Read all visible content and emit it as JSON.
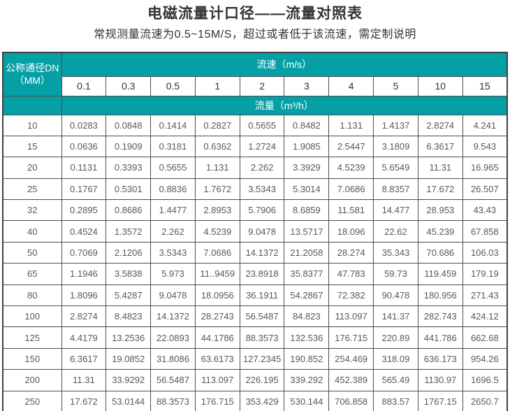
{
  "page": {
    "title": "电磁流量计口径——流量对照表",
    "subtitle": "常规测量流速为0.5~15M/S，超过或者低于该流速，需定制说明"
  },
  "colors": {
    "header_teal": "#05A0A6",
    "border_dark": "#4C4C4C",
    "data_text": "#58585A",
    "title_text": "#333333"
  },
  "table": {
    "corner_header_line1": "公称通径DN",
    "corner_header_line2": "（MM）",
    "velocity_header": "流速（m/s）",
    "flow_header": "流量（m³/h）",
    "velocity_values": [
      "0.1",
      "0.3",
      "0.5",
      "1",
      "2",
      "3",
      "4",
      "5",
      "10",
      "15"
    ],
    "rows": [
      {
        "dn": "10",
        "values": [
          "0.0283",
          "0.0848",
          "0.1414",
          "0.2827",
          "0.5655",
          "0.8482",
          "1.131",
          "1.4137",
          "2.8274",
          "4.241"
        ]
      },
      {
        "dn": "15",
        "values": [
          "0.0636",
          "0.1909",
          "0.3181",
          "0.6362",
          "1.2724",
          "1.9085",
          "2.5447",
          "3.1809",
          "6.3617",
          "9.543"
        ]
      },
      {
        "dn": "20",
        "values": [
          "0.1131",
          "0.3393",
          "0.5655",
          "1.131",
          "2.262",
          "3.3929",
          "4.5239",
          "5.6549",
          "11.31",
          "16.965"
        ]
      },
      {
        "dn": "25",
        "values": [
          "0.1767",
          "0.5301",
          "0.8836",
          "1.7672",
          "3.5343",
          "5.3014",
          "7.0686",
          "8.8357",
          "17.672",
          "26.507"
        ]
      },
      {
        "dn": "32",
        "values": [
          "0.2895",
          "0.8686",
          "1.4477",
          "2.8953",
          "5.7906",
          "8.6859",
          "11.581",
          "14.477",
          "28.953",
          "43.43"
        ]
      },
      {
        "dn": "40",
        "values": [
          "0.4524",
          "1.3572",
          "2.262",
          "4.5239",
          "9.0478",
          "13.5717",
          "18.096",
          "22.62",
          "45.239",
          "67.858"
        ]
      },
      {
        "dn": "50",
        "values": [
          "0.7069",
          "2.1206",
          "3.5343",
          "7.0686",
          "14.1372",
          "21.2058",
          "28.274",
          "35.343",
          "70.686",
          "106.03"
        ]
      },
      {
        "dn": "65",
        "values": [
          "1.1946",
          "3.5838",
          "5.973",
          "11..9459",
          "23.8918",
          "35.8377",
          "47.783",
          "59.73",
          "119.459",
          "179.19"
        ]
      },
      {
        "dn": "80",
        "values": [
          "1.8096",
          "5.4287",
          "9.0478",
          "18.0956",
          "36.1911",
          "54.2867",
          "72.382",
          "90.478",
          "180.956",
          "271.43"
        ]
      },
      {
        "dn": "100",
        "values": [
          "2.8274",
          "8.4823",
          "14.1372",
          "28.2743",
          "56.5487",
          "84.823",
          "113.097",
          "141.37",
          "282.743",
          "424.12"
        ]
      },
      {
        "dn": "125",
        "values": [
          "4.4179",
          "13.2536",
          "22.0893",
          "44.1786",
          "88.3573",
          "132.536",
          "176.715",
          "220.89",
          "441.786",
          "662.68"
        ]
      },
      {
        "dn": "150",
        "values": [
          "6.3617",
          "19.0852",
          "31.8086",
          "63.6173",
          "127.2345",
          "190.852",
          "254.469",
          "318.09",
          "636.173",
          "954.26"
        ]
      },
      {
        "dn": "200",
        "values": [
          "11.31",
          "33.9292",
          "56.5487",
          "113.097",
          "226.195",
          "339.292",
          "452.389",
          "565.49",
          "1130.97",
          "1696.5"
        ]
      },
      {
        "dn": "250",
        "values": [
          "17.672",
          "53.0144",
          "88.3573",
          "176.715",
          "353.429",
          "530.144",
          "706.858",
          "883.57",
          "1767.15",
          "2650.7"
        ]
      }
    ]
  }
}
